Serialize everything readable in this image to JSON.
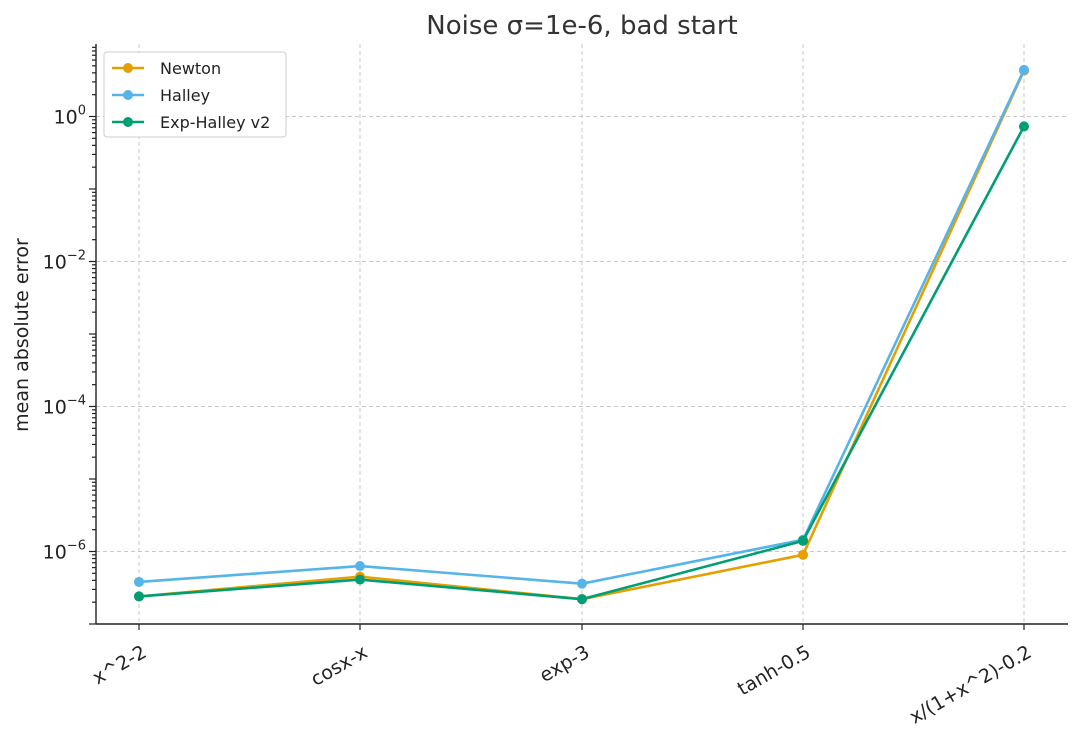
{
  "chart_data": {
    "type": "line",
    "title": "Noise σ=1e-6, bad start",
    "xlabel": "",
    "ylabel": "mean absolute error",
    "categories": [
      "x^2-2",
      "cosx-x",
      "exp-3",
      "tanh-0.5",
      "x/(1+x^2)-0.2"
    ],
    "yscale": "log",
    "ylim": [
      1e-07,
      10
    ],
    "yticks": [
      {
        "value": 1,
        "base": "10",
        "exp": "0"
      },
      {
        "value": 0.01,
        "base": "10",
        "exp": "−2"
      },
      {
        "value": 0.0001,
        "base": "10",
        "exp": "−4"
      },
      {
        "value": 1e-06,
        "base": "10",
        "exp": "−6"
      }
    ],
    "grid": true,
    "legend_position": "top-left",
    "series": [
      {
        "name": "Newton",
        "color": "#E69F00",
        "values": [
          2.4e-07,
          4.5e-07,
          2.2e-07,
          9e-07,
          4.3
        ]
      },
      {
        "name": "Halley",
        "color": "#56B4E9",
        "values": [
          3.8e-07,
          6.3e-07,
          3.6e-07,
          1.45e-06,
          4.4
        ]
      },
      {
        "name": "Exp-Halley v2",
        "color": "#009E73",
        "values": [
          2.4e-07,
          4.1e-07,
          2.2e-07,
          1.4e-06,
          0.73
        ]
      }
    ]
  }
}
